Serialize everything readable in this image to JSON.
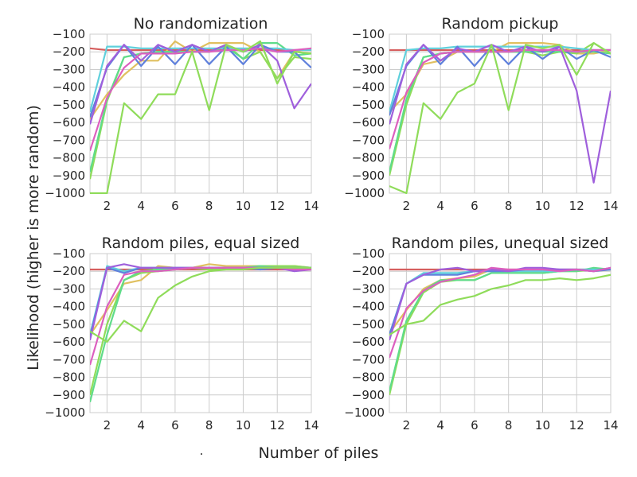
{
  "figure": {
    "ylabel": "Likelihood (higher is more random)",
    "xlabel": "Number of piles",
    "stray_mark": "."
  },
  "colors": [
    "#d65f5f",
    "#e0c060",
    "#8fdc5a",
    "#5fdc8a",
    "#5fd0dc",
    "#5f80dc",
    "#9f5fdc",
    "#dc5fbf"
  ],
  "chart_data": [
    {
      "type": "line",
      "title": "No randomization",
      "xlim": [
        1,
        14
      ],
      "ylim": [
        -1000,
        -100
      ],
      "xticks": [
        2,
        4,
        6,
        8,
        10,
        12,
        14
      ],
      "yticks": [
        -100,
        -200,
        -300,
        -400,
        -500,
        -600,
        -700,
        -800,
        -900,
        -1000
      ],
      "x": [
        1,
        2,
        3,
        4,
        5,
        6,
        7,
        8,
        9,
        10,
        11,
        12,
        13,
        14
      ],
      "grid": true,
      "series": [
        {
          "values": [
            -180,
            -190,
            -190,
            -190,
            -190,
            -190,
            -190,
            -190,
            -190,
            -190,
            -190,
            -190,
            -190,
            -190
          ]
        },
        {
          "values": [
            -580,
            -440,
            -330,
            -250,
            -250,
            -140,
            -200,
            -150,
            -150,
            -150,
            -200,
            -350,
            -200,
            -180
          ]
        },
        {
          "values": [
            -920,
            -480,
            -230,
            -210,
            -200,
            -200,
            -200,
            -200,
            -160,
            -240,
            -200,
            -350,
            -230,
            -240
          ]
        },
        {
          "values": [
            -880,
            -470,
            -230,
            -210,
            -200,
            -200,
            -200,
            -200,
            -170,
            -240,
            -150,
            -150,
            -220,
            -210
          ]
        },
        {
          "values": [
            -540,
            -170,
            -170,
            -180,
            -180,
            -180,
            -180,
            -180,
            -180,
            -180,
            -180,
            -180,
            -190,
            -190
          ]
        },
        {
          "values": [
            -570,
            -290,
            -160,
            -280,
            -170,
            -270,
            -160,
            -270,
            -170,
            -270,
            -160,
            -200,
            -200,
            -290
          ]
        },
        {
          "values": [
            -610,
            -280,
            -160,
            -250,
            -160,
            -200,
            -160,
            -200,
            -160,
            -200,
            -160,
            -250,
            -520,
            -380
          ]
        },
        {
          "values": [
            -760,
            -460,
            -290,
            -210,
            -210,
            -210,
            -200,
            -200,
            -190,
            -190,
            -180,
            -200,
            -190,
            -180
          ]
        },
        {
          "values": [
            -1000,
            -1000,
            -490,
            -580,
            -440,
            -440,
            -200,
            -530,
            -160,
            -200,
            -140,
            -380,
            -200,
            -210
          ]
        }
      ]
    },
    {
      "type": "line",
      "title": "Random pickup",
      "xlim": [
        1,
        14
      ],
      "ylim": [
        -1000,
        -100
      ],
      "xticks": [
        2,
        4,
        6,
        8,
        10,
        12,
        14
      ],
      "yticks": [
        -100,
        -200,
        -300,
        -400,
        -500,
        -600,
        -700,
        -800,
        -900,
        -1000
      ],
      "x": [
        1,
        2,
        3,
        4,
        5,
        6,
        7,
        8,
        9,
        10,
        11,
        12,
        13,
        14
      ],
      "grid": true,
      "series": [
        {
          "values": [
            -190,
            -190,
            -190,
            -190,
            -190,
            -190,
            -190,
            -190,
            -190,
            -190,
            -190,
            -190,
            -190,
            -190
          ]
        },
        {
          "values": [
            -540,
            -440,
            -270,
            -250,
            -200,
            -200,
            -200,
            -150,
            -150,
            -150,
            -160,
            -210,
            -210,
            -190
          ]
        },
        {
          "values": [
            -900,
            -500,
            -230,
            -210,
            -200,
            -200,
            -200,
            -200,
            -200,
            -220,
            -200,
            -210,
            -150,
            -210
          ]
        },
        {
          "values": [
            -880,
            -470,
            -230,
            -210,
            -200,
            -200,
            -200,
            -200,
            -200,
            -200,
            -200,
            -200,
            -200,
            -210
          ]
        },
        {
          "values": [
            -540,
            -190,
            -180,
            -180,
            -170,
            -170,
            -170,
            -170,
            -170,
            -170,
            -170,
            -180,
            -190,
            -190
          ]
        },
        {
          "values": [
            -560,
            -280,
            -160,
            -270,
            -170,
            -280,
            -170,
            -270,
            -170,
            -240,
            -170,
            -240,
            -190,
            -230
          ]
        },
        {
          "values": [
            -610,
            -270,
            -160,
            -250,
            -180,
            -200,
            -160,
            -200,
            -170,
            -200,
            -170,
            -420,
            -940,
            -420
          ]
        },
        {
          "values": [
            -750,
            -430,
            -260,
            -210,
            -200,
            -200,
            -200,
            -200,
            -190,
            -190,
            -190,
            -200,
            -190,
            -190
          ]
        },
        {
          "values": [
            -960,
            -1000,
            -490,
            -580,
            -430,
            -380,
            -160,
            -530,
            -160,
            -180,
            -160,
            -330,
            -150,
            -210
          ]
        }
      ]
    },
    {
      "type": "line",
      "title": "Random piles, equal sized",
      "xlim": [
        1,
        14
      ],
      "ylim": [
        -1000,
        -100
      ],
      "xticks": [
        2,
        4,
        6,
        8,
        10,
        12,
        14
      ],
      "yticks": [
        -100,
        -200,
        -300,
        -400,
        -500,
        -600,
        -700,
        -800,
        -900,
        -1000
      ],
      "x": [
        1,
        2,
        3,
        4,
        5,
        6,
        7,
        8,
        9,
        10,
        11,
        12,
        13,
        14
      ],
      "grid": true,
      "series": [
        {
          "values": [
            -190,
            -190,
            -190,
            -190,
            -190,
            -190,
            -190,
            -190,
            -190,
            -190,
            -190,
            -190,
            -190,
            -190
          ]
        },
        {
          "values": [
            -560,
            -420,
            -270,
            -250,
            -170,
            -180,
            -180,
            -160,
            -170,
            -170,
            -170,
            -170,
            -170,
            -180
          ]
        },
        {
          "values": [
            -900,
            -500,
            -250,
            -210,
            -200,
            -190,
            -180,
            -190,
            -180,
            -180,
            -170,
            -170,
            -170,
            -180
          ]
        },
        {
          "values": [
            -940,
            -560,
            -250,
            -200,
            -190,
            -190,
            -180,
            -180,
            -180,
            -180,
            -170,
            -180,
            -180,
            -180
          ]
        },
        {
          "values": [
            -560,
            -170,
            -200,
            -180,
            -180,
            -180,
            -180,
            -180,
            -180,
            -180,
            -180,
            -180,
            -190,
            -190
          ]
        },
        {
          "values": [
            -570,
            -180,
            -210,
            -180,
            -180,
            -180,
            -180,
            -180,
            -180,
            -180,
            -190,
            -180,
            -180,
            -180
          ]
        },
        {
          "values": [
            -590,
            -180,
            -160,
            -180,
            -180,
            -180,
            -180,
            -180,
            -180,
            -180,
            -180,
            -180,
            -200,
            -190
          ]
        },
        {
          "values": [
            -730,
            -400,
            -220,
            -200,
            -200,
            -190,
            -180,
            -180,
            -180,
            -180,
            -180,
            -180,
            -190,
            -190
          ]
        },
        {
          "values": [
            -540,
            -600,
            -480,
            -540,
            -350,
            -280,
            -230,
            -200,
            -190,
            -190,
            -180,
            -180,
            -180,
            -180
          ]
        }
      ]
    },
    {
      "type": "line",
      "title": "Random piles, unequal sized",
      "xlim": [
        1,
        14
      ],
      "ylim": [
        -1000,
        -100
      ],
      "xticks": [
        2,
        4,
        6,
        8,
        10,
        12,
        14
      ],
      "yticks": [
        -100,
        -200,
        -300,
        -400,
        -500,
        -600,
        -700,
        -800,
        -900,
        -1000
      ],
      "x": [
        1,
        2,
        3,
        4,
        5,
        6,
        7,
        8,
        9,
        10,
        11,
        12,
        13,
        14
      ],
      "grid": true,
      "series": [
        {
          "values": [
            -190,
            -190,
            -190,
            -190,
            -190,
            -190,
            -190,
            -190,
            -190,
            -190,
            -190,
            -190,
            -190,
            -190
          ]
        },
        {
          "values": [
            -550,
            -420,
            -300,
            -250,
            -240,
            -230,
            -190,
            -200,
            -200,
            -200,
            -200,
            -190,
            -200,
            -190
          ]
        },
        {
          "values": [
            -900,
            -500,
            -320,
            -260,
            -250,
            -250,
            -210,
            -210,
            -210,
            -210,
            -200,
            -200,
            -190,
            -190
          ]
        },
        {
          "values": [
            -880,
            -480,
            -310,
            -250,
            -250,
            -250,
            -210,
            -210,
            -210,
            -210,
            -200,
            -200,
            -180,
            -190
          ]
        },
        {
          "values": [
            -560,
            -270,
            -210,
            -210,
            -210,
            -200,
            -200,
            -200,
            -200,
            -200,
            -200,
            -190,
            -190,
            -190
          ]
        },
        {
          "values": [
            -560,
            -270,
            -220,
            -220,
            -220,
            -200,
            -200,
            -200,
            -190,
            -190,
            -190,
            -190,
            -200,
            -190
          ]
        },
        {
          "values": [
            -590,
            -270,
            -220,
            -190,
            -180,
            -200,
            -190,
            -200,
            -180,
            -180,
            -190,
            -190,
            -200,
            -180
          ]
        },
        {
          "values": [
            -690,
            -410,
            -310,
            -260,
            -240,
            -220,
            -180,
            -190,
            -190,
            -190,
            -200,
            -190,
            -200,
            -180
          ]
        },
        {
          "values": [
            -560,
            -500,
            -480,
            -390,
            -360,
            -340,
            -300,
            -280,
            -250,
            -250,
            -240,
            -250,
            -240,
            -220
          ]
        }
      ]
    }
  ]
}
